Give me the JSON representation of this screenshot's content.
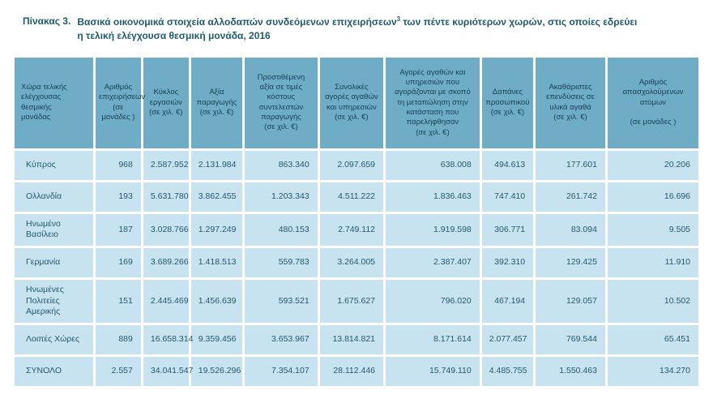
{
  "title": {
    "label": "Πίνακας 3.",
    "line1_before_sup": "Βασικά οικονομικά στοιχεία αλλοδαπών συνδεόμενων επιχειρήσεων",
    "sup": "3",
    "line1_after_sup": " των πέντε κυριότερων χωρών, στις οποίες εδρεύει",
    "line2": "η τελική ελέγχουσα θεσμική μονάδα, 2016"
  },
  "colors": {
    "header_bg": "#6fadc7",
    "cell_bg": "#c7e3ef",
    "title_text": "#1e5a6e",
    "cell_text": "#24596d"
  },
  "table": {
    "headers": [
      "Χώρα τελικής\nελέγχουσας\nθεσμικής\nμονάδας",
      "Αριθμός\nεπιχειρήσεων\n(σε μονάδες )",
      "Κύκλος\nεργασιών\n(σε χιλ. €)",
      "Αξία\nπαραγωγής\n(σε χιλ. €)",
      "Προστιθέμενη\nαξία σε τιμές\nκόστους\nσυντελεστών\nπαραγωγής\n(σε χιλ. €)",
      "Συνολικές\nαγορές αγαθών\nκαι υπηρεσιών\n(σε χιλ. €)",
      "Αγορές αγαθών και\nυπηρεσιών που\nαγοράζονται με σκοπό\nτη μεταπώληση στην\nκατάσταση που\nπαρελήφθησαν\n(σε χιλ. €)",
      "Δαπάνες\nπροσωπικού\n(σε χιλ. €)",
      "Ακαθάριστες\nεπενδύσεις σε\nυλικά αγαθά\n(σε χιλ. €)",
      "Αριθμός\nαπασχολούμενων\nατόμων\n\n(σε μονάδες )"
    ],
    "rows": [
      {
        "country": "Κύπρος",
        "values": [
          "968",
          "2.587.952",
          "2.131.984",
          "863.340",
          "2.097.659",
          "638.008",
          "494.613",
          "177.601",
          "20.206"
        ]
      },
      {
        "country": "Ολλανδία",
        "values": [
          "193",
          "5.631.780",
          "3.862.455",
          "1.203.343",
          "4.511.222",
          "1.836.463",
          "747.410",
          "261.742",
          "16.696"
        ]
      },
      {
        "country": "Ηνωμένο\nΒασίλειο",
        "values": [
          "187",
          "3.028.766",
          "1.297.249",
          "480.153",
          "2.749.112",
          "1.919.598",
          "306.771",
          "83.094",
          "9.505"
        ]
      },
      {
        "country": "Γερμανία",
        "values": [
          "169",
          "3.689.266",
          "1.418.513",
          "559.783",
          "3.264.005",
          "2.387.407",
          "392.310",
          "129.425",
          "11.910"
        ]
      },
      {
        "country": "Ηνωμένες\nΠολιτείες\nΑμερικής",
        "values": [
          "151",
          "2.445.469",
          "1.456.639",
          "593.521",
          "1.675.627",
          "796.020",
          "467.194",
          "129.057",
          "10.502"
        ]
      },
      {
        "country": "Λοιπές Χώρες",
        "values": [
          "889",
          "16.658.314",
          "9.359.456",
          "3.653.967",
          "13.814.821",
          "8.171.614",
          "2.077.457",
          "769.544",
          "65.451"
        ]
      },
      {
        "country": "ΣΥΝΟΛΟ",
        "values": [
          "2.557",
          "34.041.547",
          "19.526.296",
          "7.354.107",
          "28.112.446",
          "15.749.110",
          "4.485.755",
          "1.550.463",
          "134.270"
        ]
      }
    ]
  }
}
